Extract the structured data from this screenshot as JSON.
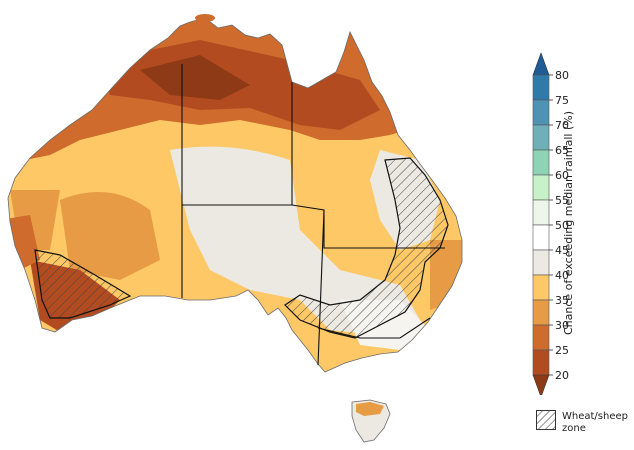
{
  "legend": {
    "title": "Chance of exceeding median rainfall (%)",
    "ticks": [
      "80",
      "75",
      "70",
      "65",
      "60",
      "55",
      "50",
      "45",
      "40",
      "35",
      "30",
      "25",
      "20"
    ],
    "bins": [
      {
        "range": "75-80",
        "color": "#2f7aa8"
      },
      {
        "range": "70-75",
        "color": "#4e93b3"
      },
      {
        "range": "65-70",
        "color": "#6fb0b8"
      },
      {
        "range": "60-65",
        "color": "#8fd3b5"
      },
      {
        "range": "55-60",
        "color": "#c7f2c7"
      },
      {
        "range": "50-55",
        "color": "#ecf7ea"
      },
      {
        "range": "45-50",
        "color": "#ffffff"
      },
      {
        "range": "40-45",
        "color": "#ece9e2"
      },
      {
        "range": "35-40",
        "color": "#fdc865"
      },
      {
        "range": "30-35",
        "color": "#e79b44"
      },
      {
        "range": "25-30",
        "color": "#ce6b2d"
      },
      {
        "range": "20-25",
        "color": "#b24c20"
      }
    ],
    "over_color": "#1f5c96",
    "under_color": "#8f3a16"
  },
  "wheat_sheep_zone": {
    "label_line1": "Wheat/sheep",
    "label_line2": "zone"
  }
}
